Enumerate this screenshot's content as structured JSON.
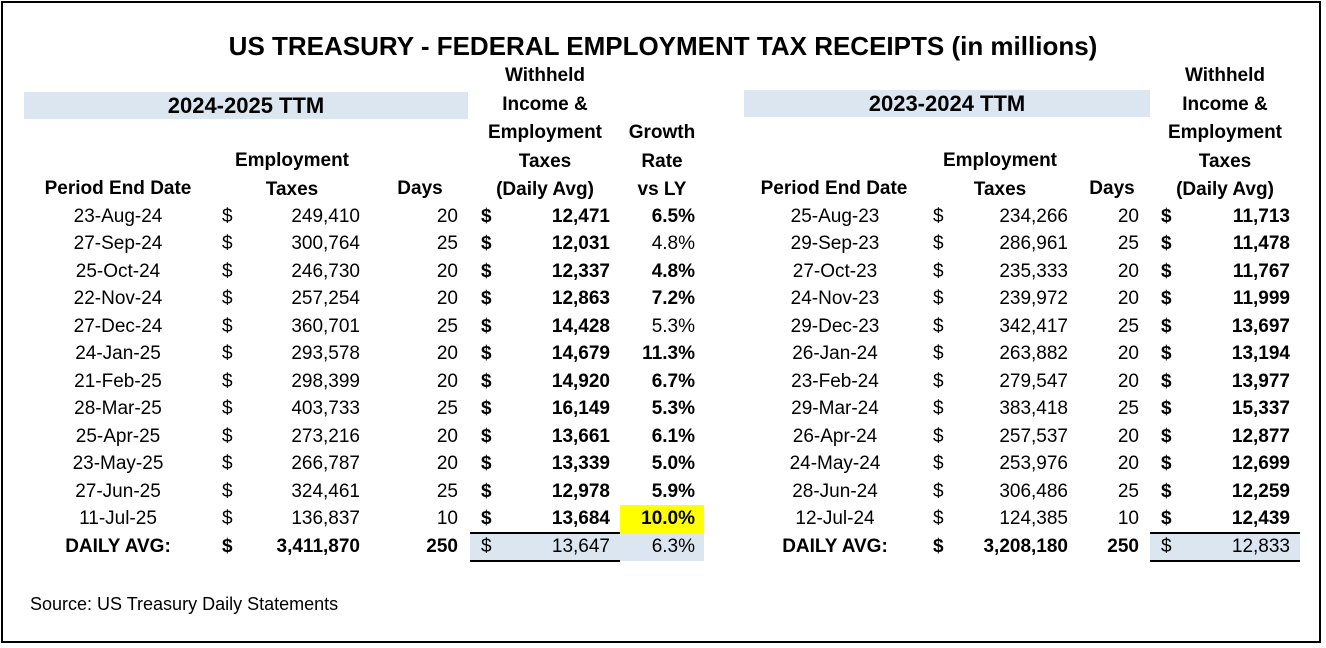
{
  "title": "US TREASURY - FEDERAL EMPLOYMENT TAX RECEIPTS (in millions)",
  "source": "Source: US Treasury Daily Statements",
  "currency_symbol": "$",
  "highlight_color": "#ffff00",
  "band_color": "#dce6f1",
  "left_table": {
    "band_label": "2024-2025 TTM",
    "headers": {
      "period": "Period End Date",
      "employment_1": "Employment",
      "employment_2": "Taxes",
      "days": "Days",
      "withheld_1": "Withheld",
      "withheld_2": "Income &",
      "withheld_3": "Employment",
      "withheld_4": "Taxes",
      "withheld_5": "(Daily Avg)",
      "growth_1": "Growth",
      "growth_2": "Rate",
      "growth_3": "vs LY"
    },
    "rows": [
      {
        "date": "23-Aug-24",
        "taxes": "249,410",
        "days": "20",
        "avg": "12,471",
        "growth": "6.5%",
        "growth_bold": true
      },
      {
        "date": "27-Sep-24",
        "taxes": "300,764",
        "days": "25",
        "avg": "12,031",
        "growth": "4.8%",
        "growth_bold": false
      },
      {
        "date": "25-Oct-24",
        "taxes": "246,730",
        "days": "20",
        "avg": "12,337",
        "growth": "4.8%",
        "growth_bold": true
      },
      {
        "date": "22-Nov-24",
        "taxes": "257,254",
        "days": "20",
        "avg": "12,863",
        "growth": "7.2%",
        "growth_bold": true
      },
      {
        "date": "27-Dec-24",
        "taxes": "360,701",
        "days": "25",
        "avg": "14,428",
        "growth": "5.3%",
        "growth_bold": false
      },
      {
        "date": "24-Jan-25",
        "taxes": "293,578",
        "days": "20",
        "avg": "14,679",
        "growth": "11.3%",
        "growth_bold": true
      },
      {
        "date": "21-Feb-25",
        "taxes": "298,399",
        "days": "20",
        "avg": "14,920",
        "growth": "6.7%",
        "growth_bold": true
      },
      {
        "date": "28-Mar-25",
        "taxes": "403,733",
        "days": "25",
        "avg": "16,149",
        "growth": "5.3%",
        "growth_bold": true
      },
      {
        "date": "25-Apr-25",
        "taxes": "273,216",
        "days": "20",
        "avg": "13,661",
        "growth": "6.1%",
        "growth_bold": true
      },
      {
        "date": "23-May-25",
        "taxes": "266,787",
        "days": "20",
        "avg": "13,339",
        "growth": "5.0%",
        "growth_bold": true
      },
      {
        "date": "27-Jun-25",
        "taxes": "324,461",
        "days": "25",
        "avg": "12,978",
        "growth": "5.9%",
        "growth_bold": true
      },
      {
        "date": "11-Jul-25",
        "taxes": "136,837",
        "days": "10",
        "avg": "13,684",
        "growth": "10.0%",
        "growth_bold": true,
        "highlight": true
      }
    ],
    "total": {
      "label": "DAILY AVG:",
      "taxes": "3,411,870",
      "days": "250",
      "avg": "13,647",
      "growth": "6.3%"
    }
  },
  "right_table": {
    "band_label": "2023-2024 TTM",
    "headers": {
      "period": "Period End Date",
      "employment_1": "Employment",
      "employment_2": "Taxes",
      "days": "Days",
      "withheld_1": "Withheld",
      "withheld_2": "Income &",
      "withheld_3": "Employment",
      "withheld_4": "Taxes",
      "withheld_5": "(Daily Avg)"
    },
    "rows": [
      {
        "date": "25-Aug-23",
        "taxes": "234,266",
        "days": "20",
        "avg": "11,713"
      },
      {
        "date": "29-Sep-23",
        "taxes": "286,961",
        "days": "25",
        "avg": "11,478"
      },
      {
        "date": "27-Oct-23",
        "taxes": "235,333",
        "days": "20",
        "avg": "11,767"
      },
      {
        "date": "24-Nov-23",
        "taxes": "239,972",
        "days": "20",
        "avg": "11,999"
      },
      {
        "date": "29-Dec-23",
        "taxes": "342,417",
        "days": "25",
        "avg": "13,697"
      },
      {
        "date": "26-Jan-24",
        "taxes": "263,882",
        "days": "20",
        "avg": "13,194"
      },
      {
        "date": "23-Feb-24",
        "taxes": "279,547",
        "days": "20",
        "avg": "13,977"
      },
      {
        "date": "29-Mar-24",
        "taxes": "383,418",
        "days": "25",
        "avg": "15,337"
      },
      {
        "date": "26-Apr-24",
        "taxes": "257,537",
        "days": "20",
        "avg": "12,877"
      },
      {
        "date": "24-May-24",
        "taxes": "253,976",
        "days": "20",
        "avg": "12,699"
      },
      {
        "date": "28-Jun-24",
        "taxes": "306,486",
        "days": "25",
        "avg": "12,259"
      },
      {
        "date": "12-Jul-24",
        "taxes": "124,385",
        "days": "10",
        "avg": "12,439"
      }
    ],
    "total": {
      "label": "DAILY AVG:",
      "taxes": "3,208,180",
      "days": "250",
      "avg": "12,833"
    }
  }
}
